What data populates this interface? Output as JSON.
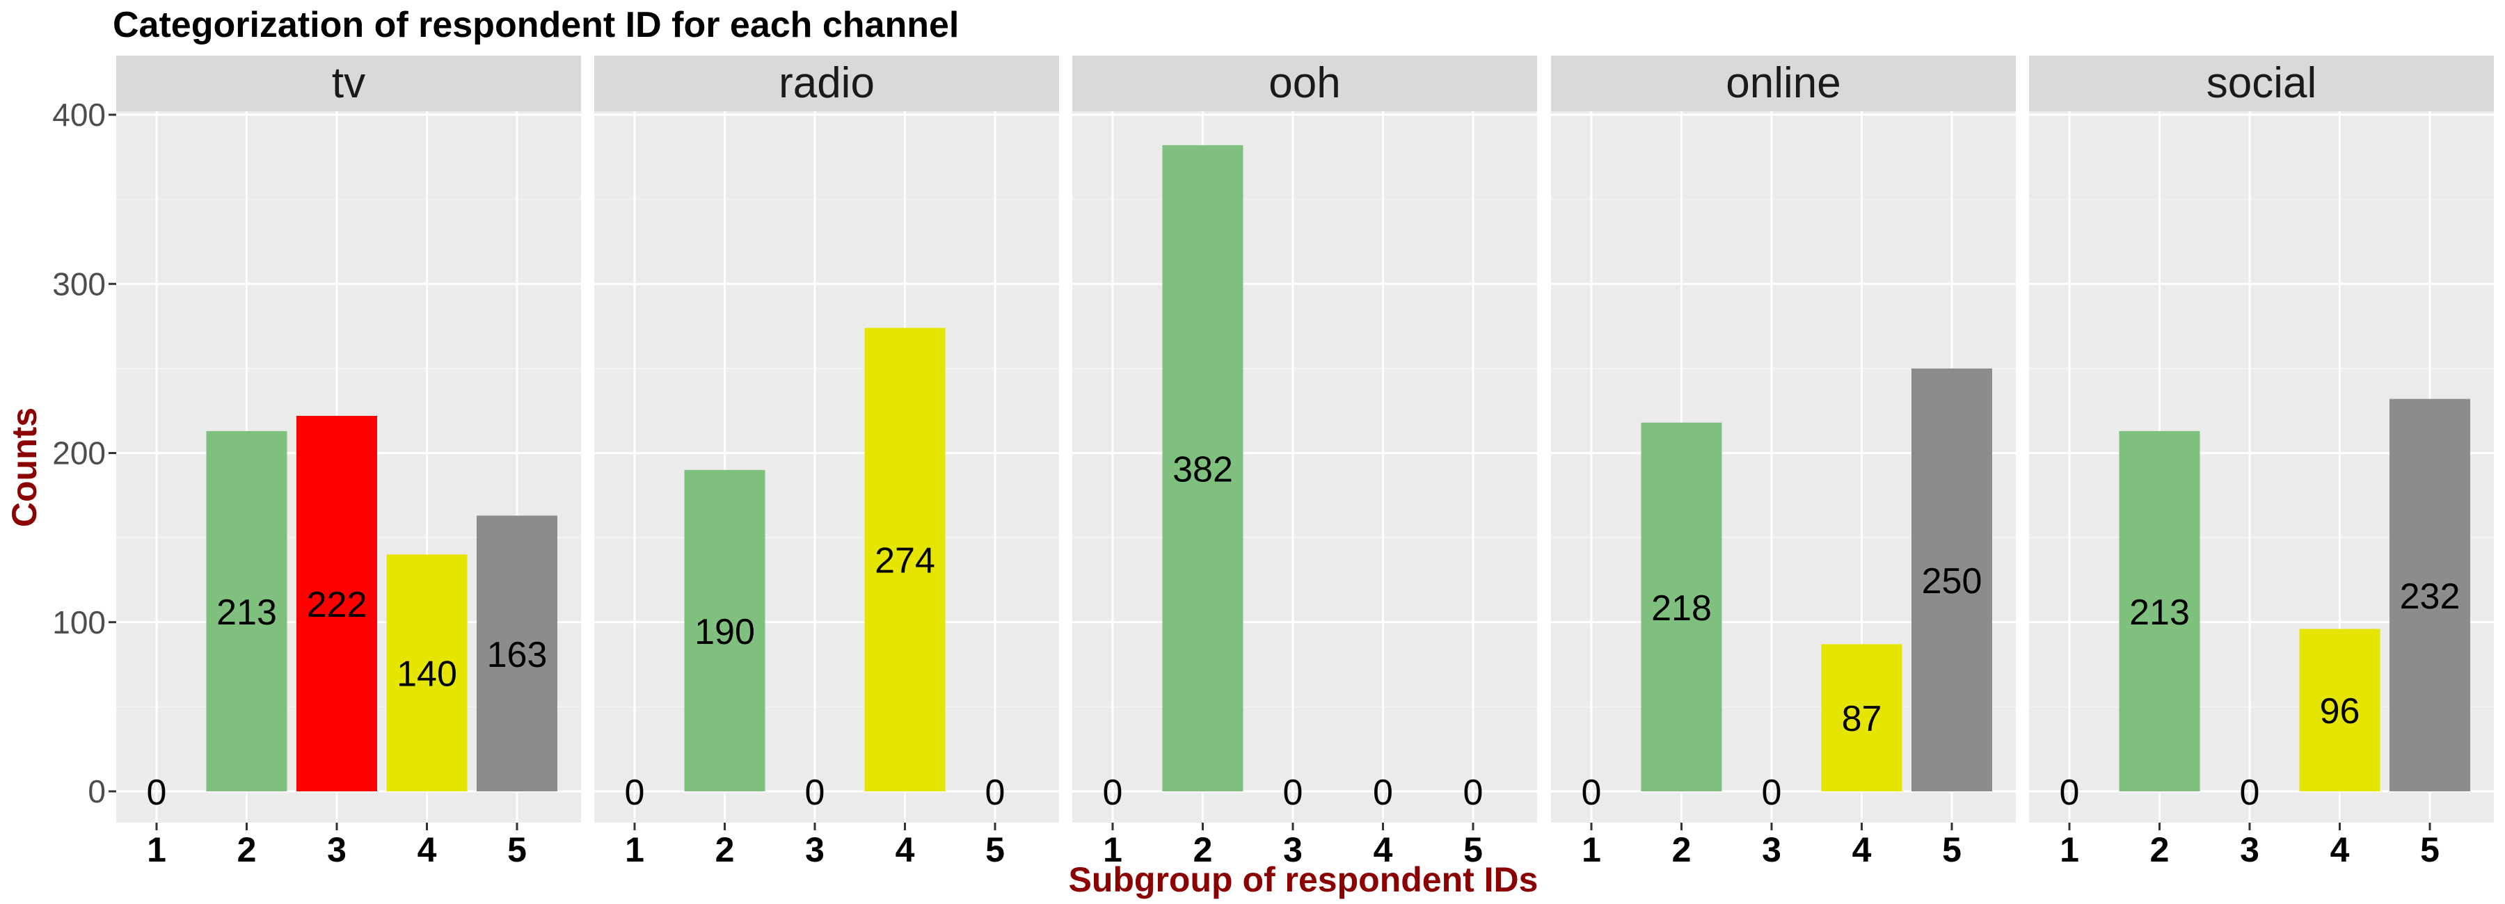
{
  "chart_data": {
    "type": "bar",
    "title": "Categorization of respondent ID for each channel",
    "xlabel": "Subgroup of respondent IDs",
    "ylabel": "Counts",
    "ylim": [
      0,
      430
    ],
    "yticks": [
      0,
      100,
      200,
      300,
      400
    ],
    "categories": [
      "1",
      "2",
      "3",
      "4",
      "5"
    ],
    "grid": true,
    "facets": [
      {
        "name": "tv",
        "values": [
          0,
          213,
          222,
          140,
          163
        ]
      },
      {
        "name": "radio",
        "values": [
          0,
          190,
          0,
          274,
          0
        ]
      },
      {
        "name": "ooh",
        "values": [
          0,
          382,
          0,
          0,
          0
        ]
      },
      {
        "name": "online",
        "values": [
          0,
          218,
          0,
          87,
          250
        ]
      },
      {
        "name": "social",
        "values": [
          0,
          213,
          0,
          96,
          232
        ]
      }
    ],
    "category_colors": {
      "1": "#ff0000",
      "2": "#7fc07f",
      "3": "#ff0000",
      "4": "#e5e500",
      "5": "#8c8c8c"
    },
    "axis_title_color": "#8b0000"
  }
}
